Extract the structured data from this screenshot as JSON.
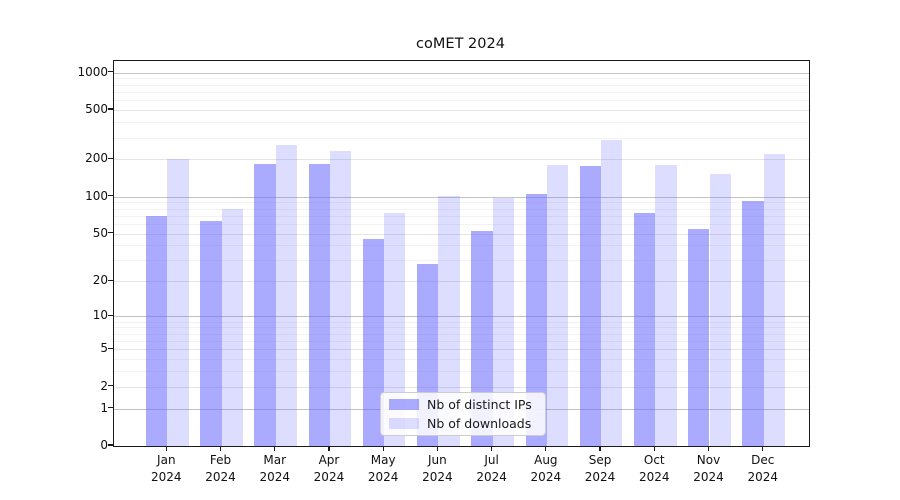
{
  "chart_data": {
    "type": "bar",
    "title": "coMET 2024",
    "categories": [
      "Jan",
      "Feb",
      "Mar",
      "Apr",
      "May",
      "Jun",
      "Jul",
      "Aug",
      "Sep",
      "Oct",
      "Nov",
      "Dec"
    ],
    "category_year": "2024",
    "series": [
      {
        "name": "Nb of distinct IPs",
        "color": "rgba(101,101,253,0.55)",
        "values": [
          70,
          63,
          185,
          183,
          45,
          28,
          52,
          106,
          178,
          73,
          54,
          92
        ]
      },
      {
        "name": "Nb of downloads",
        "color": "rgba(101,101,253,0.22)",
        "values": [
          200,
          80,
          262,
          235,
          73,
          102,
          98,
          180,
          285,
          181,
          152,
          220
        ]
      }
    ],
    "yscale": "log10(value+1)",
    "yticks": [
      0,
      1,
      2,
      5,
      10,
      20,
      50,
      100,
      200,
      500,
      1000
    ],
    "yticks_major": [
      1,
      10,
      100,
      1000
    ],
    "yticks_minor": [
      3,
      4,
      6,
      7,
      8,
      9,
      30,
      40,
      60,
      70,
      80,
      90,
      300,
      400,
      600,
      700,
      800,
      900
    ],
    "ylim": [
      0,
      1243
    ],
    "grid": true,
    "legend_position": "lower center",
    "xlabel": "",
    "ylabel": ""
  }
}
